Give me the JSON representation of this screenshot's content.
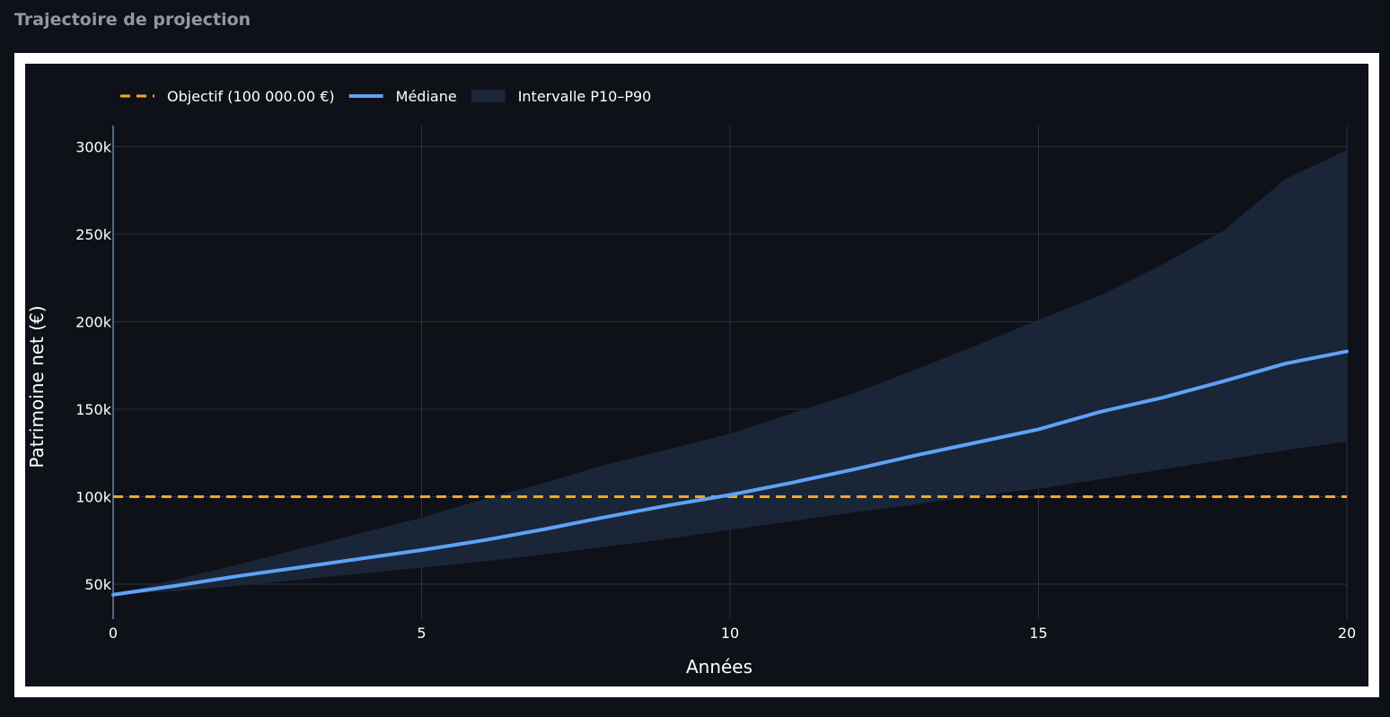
{
  "section": {
    "title": "Trajectoire de projection"
  },
  "chart_data": {
    "type": "line",
    "title": "",
    "xlabel": "Années",
    "ylabel": "Patrimoine net (€)",
    "xlim": [
      0,
      20
    ],
    "ylim": [
      30000,
      312000
    ],
    "grid": true,
    "legend_position": "top-left",
    "x_ticks": [
      0,
      5,
      10,
      15,
      20
    ],
    "x_tick_labels": [
      "0",
      "5",
      "10",
      "15",
      "20"
    ],
    "y_ticks": [
      50000,
      100000,
      150000,
      200000,
      250000,
      300000
    ],
    "y_tick_labels": [
      "50k",
      "100k",
      "150k",
      "200k",
      "250k",
      "300k"
    ],
    "x": [
      0,
      1,
      2,
      3,
      4,
      5,
      6,
      7,
      8,
      9,
      10,
      11,
      12,
      13,
      14,
      15,
      16,
      17,
      18,
      19,
      20
    ],
    "series": [
      {
        "name": "Objectif (100 000.00 €)",
        "kind": "hline",
        "y": 100000,
        "color": "#f5a623",
        "dash": "dashed"
      },
      {
        "name": "Médiane",
        "kind": "line",
        "color": "#5fa2f5",
        "values": [
          44000,
          49000,
          54500,
          59500,
          64500,
          69500,
          75000,
          81500,
          88500,
          95000,
          101000,
          108000,
          115500,
          123500,
          131000,
          138500,
          148500,
          156500,
          166000,
          176000,
          183000
        ]
      },
      {
        "name": "Intervalle P10–P90",
        "kind": "band",
        "color": "#1a2538",
        "lower": [
          44000,
          46000,
          49000,
          52500,
          56000,
          59500,
          63000,
          67000,
          71500,
          76000,
          81000,
          86000,
          91000,
          95500,
          100500,
          104500,
          110000,
          115500,
          121000,
          126500,
          131500
        ],
        "upper": [
          44000,
          52500,
          61000,
          70000,
          79000,
          88000,
          98500,
          108000,
          118500,
          127000,
          136000,
          147500,
          159000,
          172500,
          186500,
          201000,
          215000,
          232500,
          252000,
          281500,
          298000
        ]
      }
    ]
  }
}
